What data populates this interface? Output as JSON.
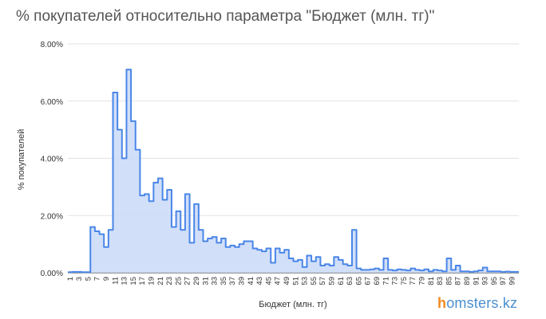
{
  "brand": {
    "h": "h",
    "rest": "omsters.kz",
    "h_color": "#f28a1e",
    "rest_color": "#4a8fd0"
  },
  "colors": {
    "line": "#4a86e8",
    "fill": "#c9d9f8",
    "grid": "#d9d9d9",
    "text": "#555555"
  },
  "chart_data": {
    "type": "area",
    "title": "% покупателей относительно параметра \"Бюджет (млн. тг)\"",
    "xlabel": "Бюджет (млн. тг)",
    "ylabel": "% покупателей",
    "ylim": [
      0,
      8
    ],
    "y_unit": "%",
    "y_ticks": [
      "0.00%",
      "2.00%",
      "4.00%",
      "6.00%",
      "8.00%"
    ],
    "x_ticks": [
      "1",
      "3",
      "5",
      "7",
      "9",
      "11",
      "13",
      "15",
      "17",
      "19",
      "21",
      "23",
      "25",
      "27",
      "29",
      "31",
      "33",
      "35",
      "37",
      "39",
      "41",
      "43",
      "45",
      "47",
      "49",
      "51",
      "53",
      "55",
      "57",
      "59",
      "61",
      "63",
      "65",
      "67",
      "69",
      "71",
      "73",
      "75",
      "77",
      "79",
      "81",
      "83",
      "85",
      "87",
      "89",
      "91",
      "93",
      "95",
      "97",
      "99"
    ],
    "grid": true,
    "legend": "none",
    "x": [
      1,
      2,
      3,
      4,
      5,
      6,
      7,
      8,
      9,
      10,
      11,
      12,
      13,
      14,
      15,
      16,
      17,
      18,
      19,
      20,
      21,
      22,
      23,
      24,
      25,
      26,
      27,
      28,
      29,
      30,
      31,
      32,
      33,
      34,
      35,
      36,
      37,
      38,
      39,
      40,
      41,
      42,
      43,
      44,
      45,
      46,
      47,
      48,
      49,
      50,
      51,
      52,
      53,
      54,
      55,
      56,
      57,
      58,
      59,
      60,
      61,
      62,
      63,
      64,
      65,
      66,
      67,
      68,
      69,
      70,
      71,
      72,
      73,
      74,
      75,
      76,
      77,
      78,
      79,
      80,
      81,
      82,
      83,
      84,
      85,
      86,
      87,
      88,
      89,
      90,
      91,
      92,
      93,
      94,
      95,
      96,
      97,
      98,
      99,
      100
    ],
    "values": [
      0.02,
      0.03,
      0.03,
      0.02,
      0.02,
      1.6,
      1.45,
      1.35,
      0.9,
      1.5,
      6.3,
      5.0,
      4.0,
      7.1,
      5.3,
      4.3,
      2.7,
      2.75,
      2.5,
      3.15,
      3.3,
      2.55,
      2.9,
      1.6,
      2.15,
      1.5,
      2.75,
      1.05,
      2.4,
      1.5,
      1.1,
      1.2,
      1.25,
      1.05,
      1.2,
      0.9,
      0.95,
      0.9,
      1.0,
      1.1,
      1.1,
      0.85,
      0.8,
      0.75,
      0.85,
      0.35,
      0.85,
      0.7,
      0.8,
      0.5,
      0.4,
      0.45,
      0.2,
      0.6,
      0.4,
      0.55,
      0.25,
      0.3,
      0.25,
      0.55,
      0.45,
      0.3,
      0.25,
      1.5,
      0.15,
      0.1,
      0.1,
      0.12,
      0.15,
      0.1,
      0.5,
      0.1,
      0.08,
      0.12,
      0.1,
      0.08,
      0.15,
      0.1,
      0.08,
      0.12,
      0.05,
      0.1,
      0.08,
      0.05,
      0.5,
      0.1,
      0.25,
      0.05,
      0.05,
      0.03,
      0.05,
      0.08,
      0.18,
      0.05,
      0.05,
      0.05,
      0.03,
      0.04,
      0.03,
      0.03
    ]
  }
}
